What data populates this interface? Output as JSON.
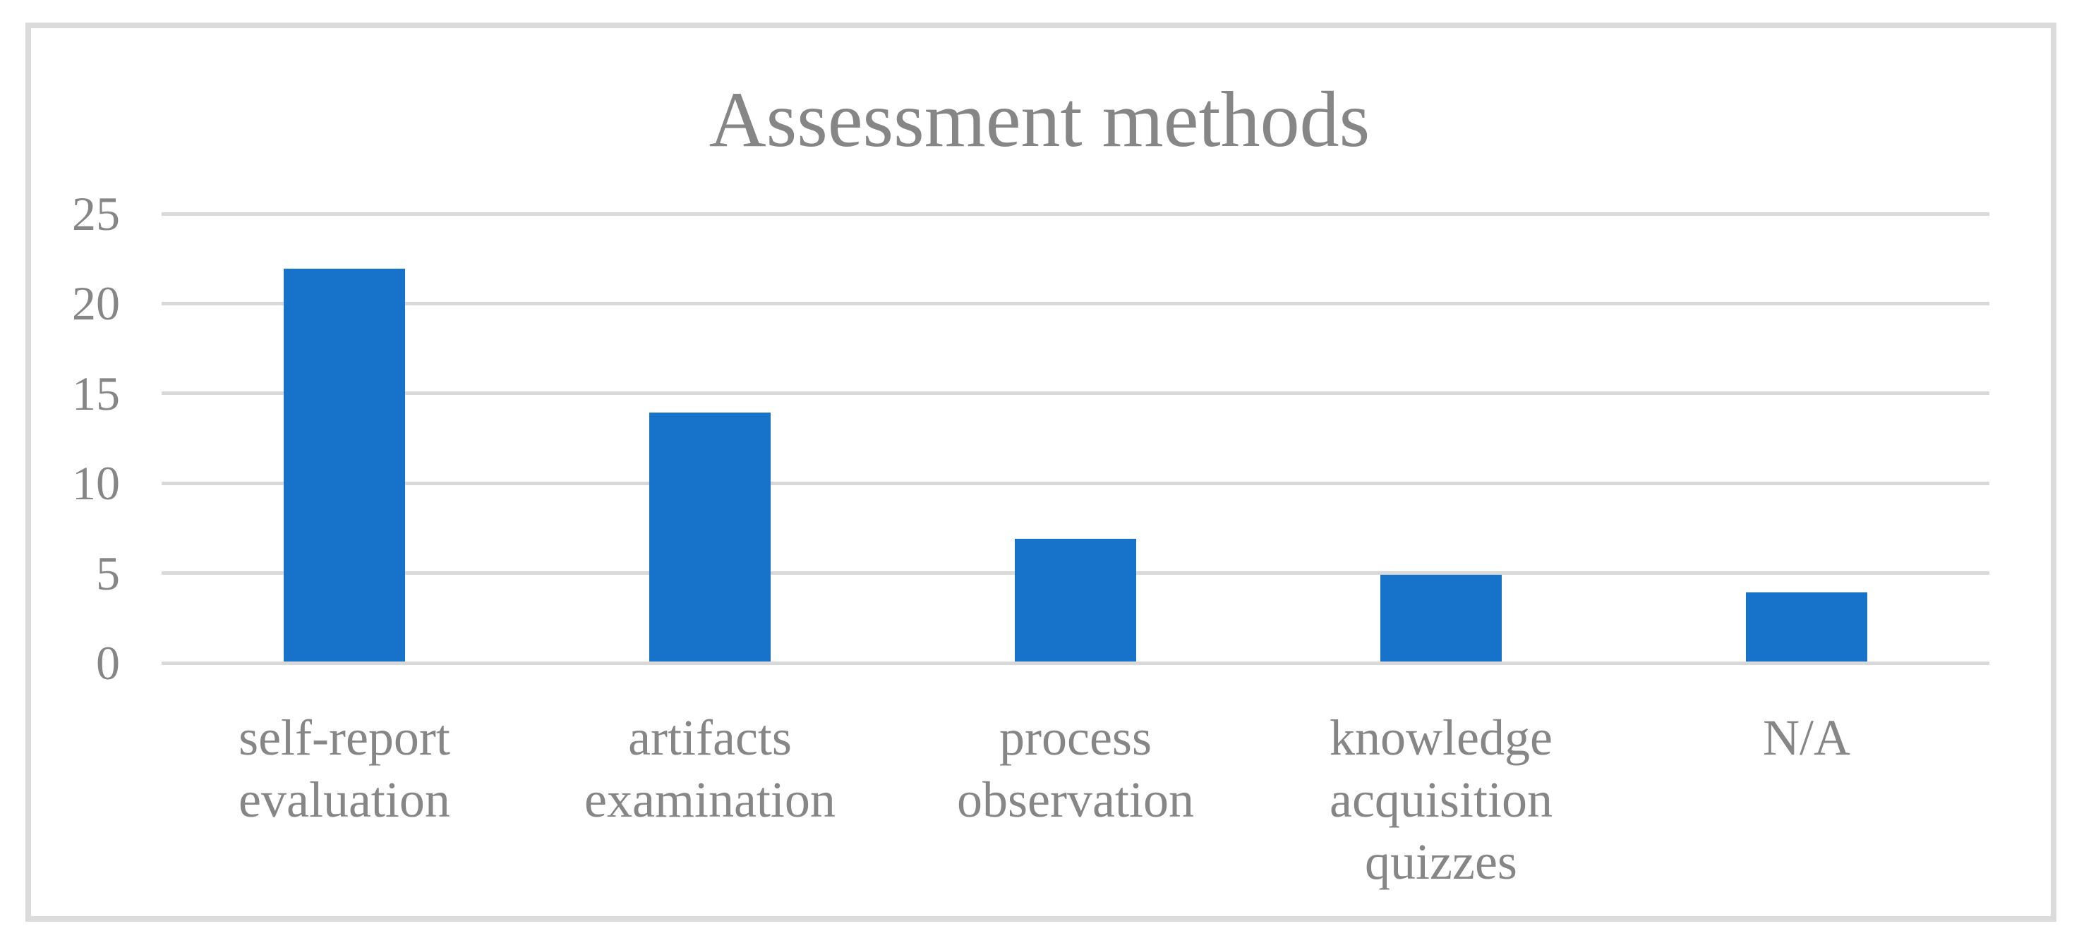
{
  "chart_data": {
    "type": "bar",
    "title": "Assessment methods",
    "categories": [
      "self-report evaluation",
      "artifacts examination",
      "process observation",
      "knowledge acquisition quizzes",
      "N/A"
    ],
    "values": [
      22,
      14,
      7,
      5,
      4
    ],
    "yticks": [
      0,
      5,
      10,
      15,
      20,
      25
    ],
    "ylim": [
      0,
      25
    ],
    "xlabel": "",
    "ylabel": "",
    "legend_position": "none",
    "grid": "horizontal",
    "colors": {
      "bar": "#1772C9",
      "gridline": "#D9D9D9",
      "text": "#868686",
      "frame_border": "#DBDBDB",
      "background": "#FFFFFF"
    }
  }
}
